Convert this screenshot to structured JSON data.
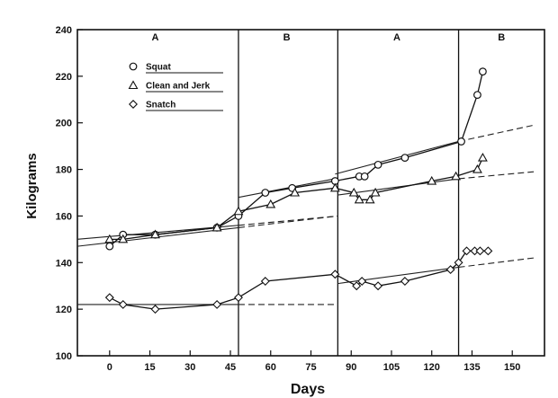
{
  "chart_data": {
    "type": "line",
    "title": "",
    "xlabel": "Days",
    "ylabel": "Kilograms",
    "xlim": [
      -12,
      162
    ],
    "ylim": [
      100,
      240
    ],
    "x_ticks": [
      0,
      15,
      30,
      45,
      60,
      75,
      90,
      105,
      120,
      135,
      150
    ],
    "y_ticks": [
      100,
      120,
      140,
      160,
      180,
      200,
      220,
      240
    ],
    "grid": false,
    "legend_position": "top-left",
    "phase_boundaries": [
      48,
      85,
      130
    ],
    "phases": [
      {
        "label": "A",
        "x_center": 17
      },
      {
        "label": "B",
        "x_center": 66
      },
      {
        "label": "A",
        "x_center": 107
      },
      {
        "label": "B",
        "x_center": 146
      }
    ],
    "series": [
      {
        "name": "Squat",
        "marker": "circle",
        "x": [
          0,
          5,
          17,
          40,
          48,
          58,
          68,
          84,
          93,
          95,
          100,
          110,
          131,
          137,
          139
        ],
        "y": [
          147,
          152,
          152,
          155,
          160,
          170,
          172,
          175,
          177,
          177,
          182,
          185,
          192,
          212,
          222
        ],
        "trend_lines": [
          {
            "x": [
              -12,
              48
            ],
            "y": [
              150,
              156
            ],
            "style": "solid"
          },
          {
            "x": [
              48,
              85
            ],
            "y": [
              156,
              160
            ],
            "style": "dashed"
          },
          {
            "x": [
              48,
              84
            ],
            "y": [
              168,
              176
            ],
            "style": "solid"
          },
          {
            "x": [
              84,
              130
            ],
            "y": [
              178,
              192
            ],
            "style": "solid"
          },
          {
            "x": [
              130,
              158
            ],
            "y": [
              192,
              199
            ],
            "style": "dashed"
          }
        ]
      },
      {
        "name": "Clean and Jerk",
        "marker": "triangle",
        "x": [
          0,
          5,
          17,
          40,
          48,
          60,
          69,
          84,
          91,
          93,
          97,
          99,
          120,
          129,
          137,
          139
        ],
        "y": [
          150,
          150,
          152,
          155,
          162,
          165,
          170,
          172,
          170,
          167,
          167,
          170,
          175,
          177,
          180,
          185
        ],
        "trend_lines": [
          {
            "x": [
              -12,
              48
            ],
            "y": [
              147,
              155
            ],
            "style": "solid"
          },
          {
            "x": [
              48,
              85
            ],
            "y": [
              155,
              160
            ],
            "style": "dashed"
          },
          {
            "x": [
              85,
              130
            ],
            "y": [
              169,
              176
            ],
            "style": "solid"
          },
          {
            "x": [
              130,
              158
            ],
            "y": [
              176,
              179
            ],
            "style": "dashed"
          }
        ]
      },
      {
        "name": "Snatch",
        "marker": "diamond",
        "x": [
          0,
          5,
          17,
          40,
          48,
          58,
          84,
          92,
          94,
          100,
          110,
          127,
          130,
          133,
          136,
          138,
          141
        ],
        "y": [
          125,
          122,
          120,
          122,
          125,
          132,
          135,
          130,
          132,
          130,
          132,
          137,
          140,
          145,
          145,
          145,
          145
        ],
        "trend_lines": [
          {
            "x": [
              -12,
              48
            ],
            "y": [
              122,
              122
            ],
            "style": "solid"
          },
          {
            "x": [
              48,
              85
            ],
            "y": [
              122,
              122
            ],
            "style": "dashed"
          },
          {
            "x": [
              85,
              130
            ],
            "y": [
              131,
              138
            ],
            "style": "solid"
          },
          {
            "x": [
              130,
              158
            ],
            "y": [
              138,
              142
            ],
            "style": "dashed"
          }
        ]
      }
    ]
  }
}
